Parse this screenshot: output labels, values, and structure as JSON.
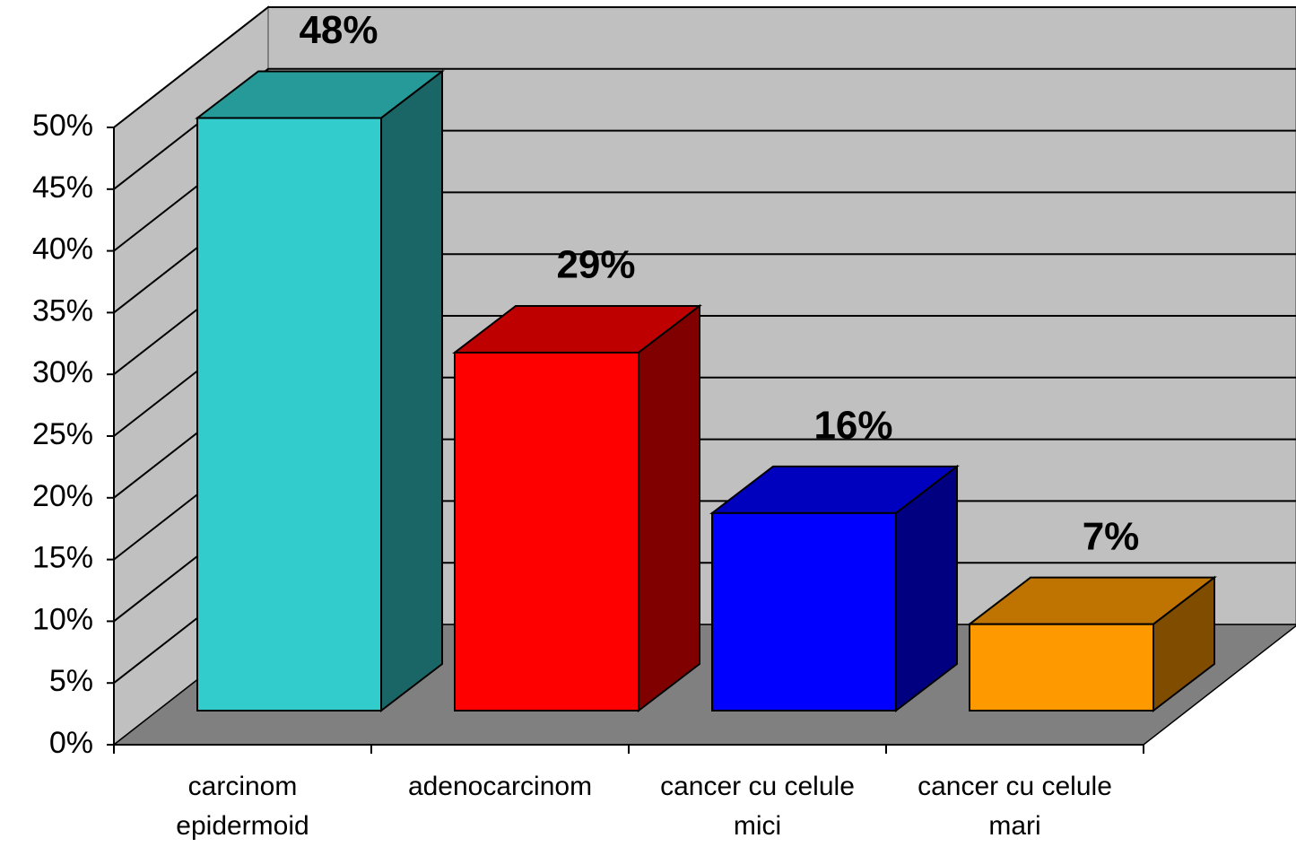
{
  "chart_data": {
    "type": "bar3d",
    "categories": [
      "carcinom epidermoid",
      "adenocarcinom",
      "cancer cu celule mici",
      "cancer cu celule mari"
    ],
    "values": [
      48,
      29,
      16,
      7
    ],
    "value_labels": [
      "48%",
      "29%",
      "16%",
      "7%"
    ],
    "colors": [
      "#33cccc",
      "#ff0000",
      "#0000ff",
      "#ff9900"
    ],
    "ylim": [
      0,
      50
    ],
    "yticks": [
      {
        "value": 0,
        "label": "0%"
      },
      {
        "value": 5,
        "label": "5%"
      },
      {
        "value": 10,
        "label": "10%"
      },
      {
        "value": 15,
        "label": "15%"
      },
      {
        "value": 20,
        "label": "20%"
      },
      {
        "value": 25,
        "label": "25%"
      },
      {
        "value": 30,
        "label": "30%"
      },
      {
        "value": 35,
        "label": "35%"
      },
      {
        "value": 40,
        "label": "40%"
      },
      {
        "value": 45,
        "label": "45%"
      },
      {
        "value": 50,
        "label": "50%"
      }
    ],
    "grid": true
  }
}
